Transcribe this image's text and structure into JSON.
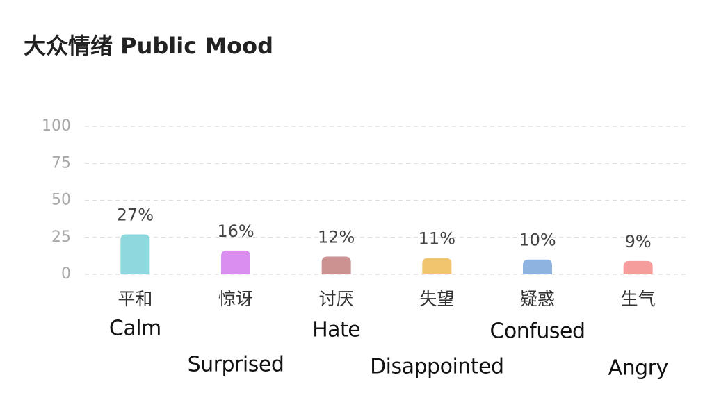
{
  "chart_data": {
    "type": "bar",
    "title": "大众情绪 Public Mood",
    "categories": [
      "平和",
      "惊讶",
      "讨厌",
      "失望",
      "疑惑",
      "生气"
    ],
    "category_translations": [
      "Calm",
      "Surprised",
      "Hate",
      "Disappointed",
      "Confused",
      "Angry"
    ],
    "values": [
      27,
      16,
      12,
      11,
      10,
      9
    ],
    "value_labels": [
      "27%",
      "16%",
      "12%",
      "11%",
      "10%",
      "9%"
    ],
    "colors": [
      "#8fd8de",
      "#d98ef0",
      "#cc9292",
      "#f1c46e",
      "#8fb3e0",
      "#f59c9c"
    ],
    "ylim": [
      0,
      100
    ],
    "yticks": [
      0,
      25,
      50,
      75,
      100
    ],
    "grid": true
  }
}
